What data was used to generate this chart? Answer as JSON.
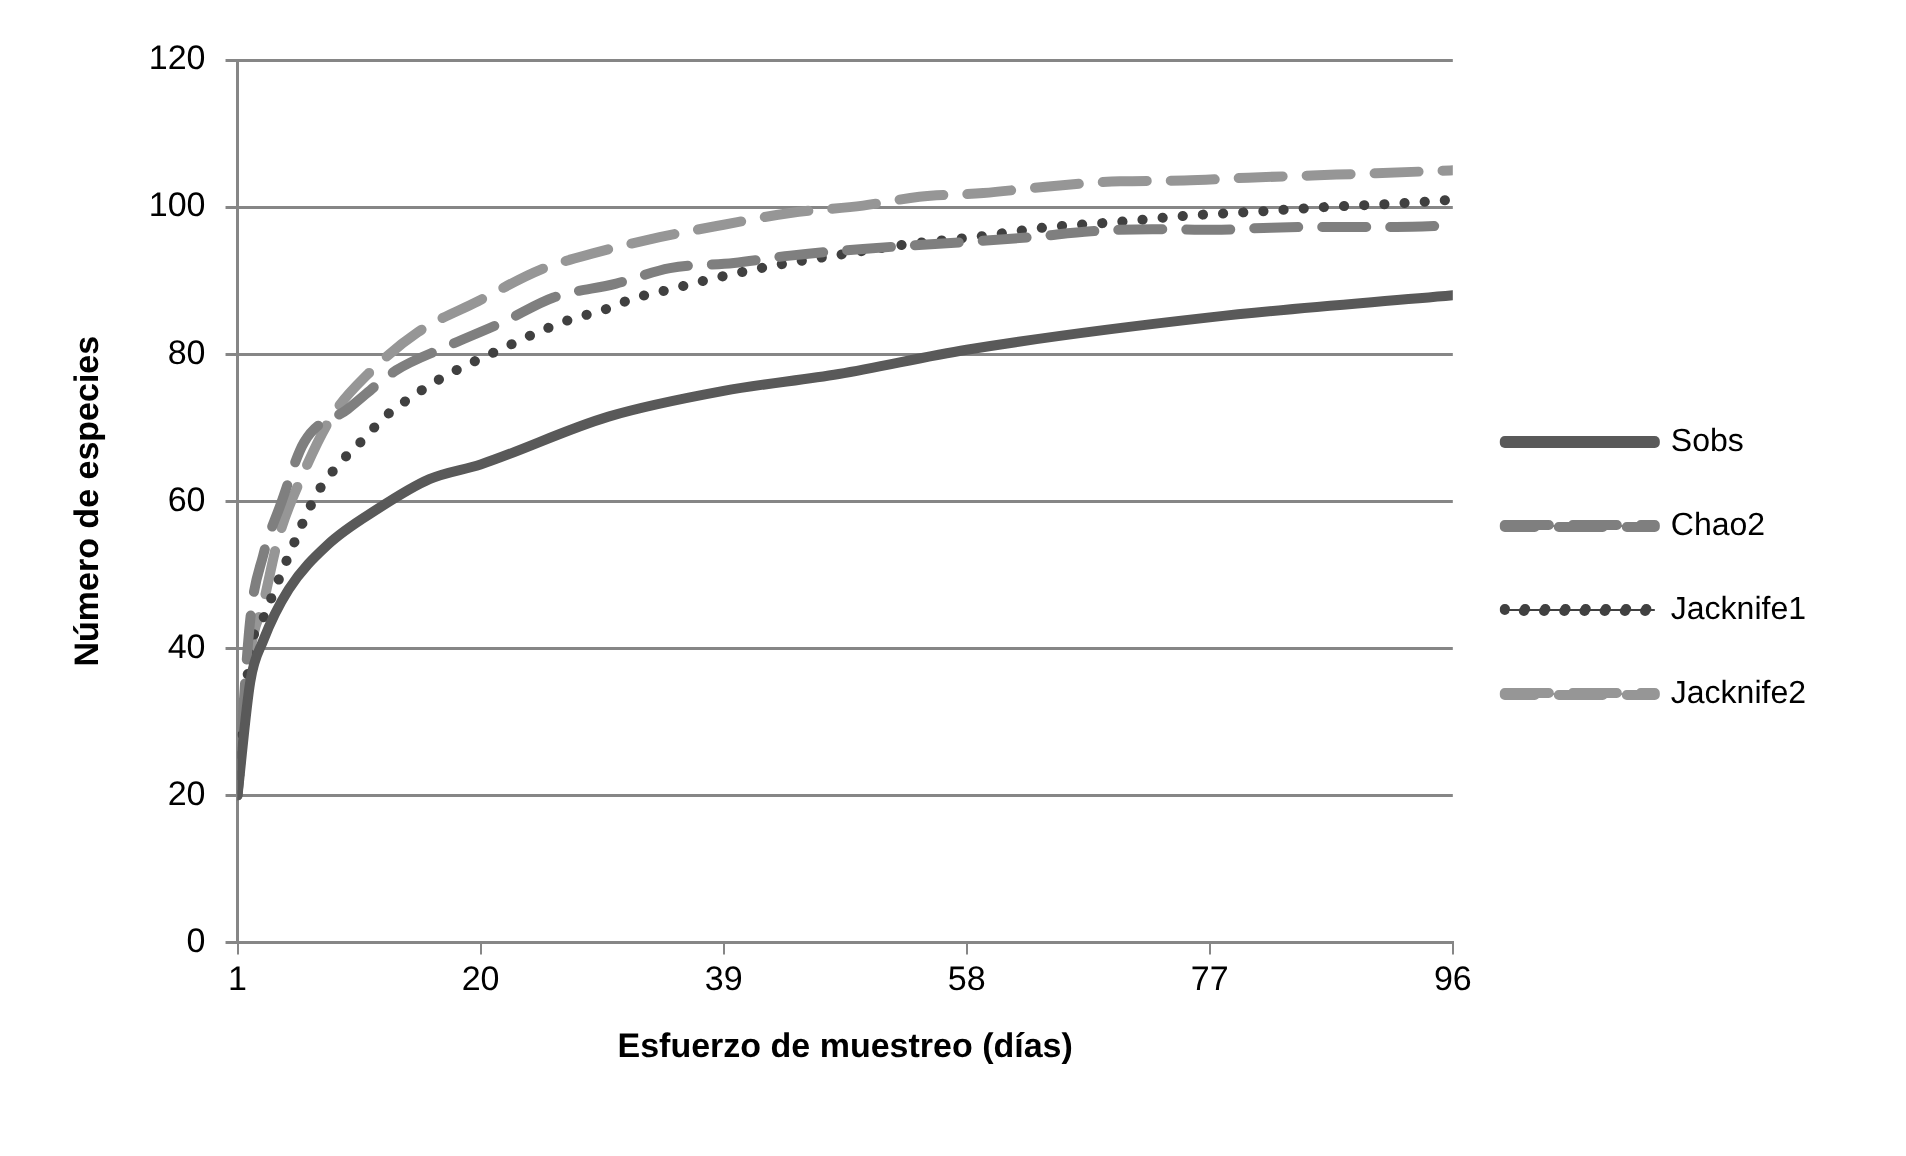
{
  "chart_data": {
    "type": "line",
    "xlabel": "Esfuerzo de muestreo (días)",
    "ylabel": "Número de especies",
    "xlim": [
      1,
      96
    ],
    "xticks": [
      1,
      20,
      39,
      58,
      77,
      96
    ],
    "ylim": [
      0,
      120
    ],
    "yticks": [
      0,
      20,
      40,
      60,
      80,
      100,
      120
    ],
    "grid": "y",
    "legend": "right",
    "marker": "none",
    "series": [
      {
        "name": "Sobs",
        "color": "#595959",
        "line_style": "solid",
        "x": [
          1,
          2,
          3,
          5,
          8,
          12,
          16,
          20,
          30,
          39,
          48,
          58,
          77,
          96
        ],
        "values": [
          20,
          35.5,
          41,
          48,
          54,
          59,
          63,
          65,
          71.5,
          75,
          77.3,
          80.6,
          85,
          88
        ]
      },
      {
        "name": "Chao2",
        "color": "#7f7f7f",
        "line_style": "dashed",
        "x": [
          1,
          2,
          3,
          4.4,
          6.2,
          9.6,
          13.4,
          17.3,
          21.8,
          25.7,
          30.6,
          34.8,
          39.8,
          44.2,
          49.9,
          63,
          67.7,
          72.5,
          77.3,
          81.8,
          86,
          91.6,
          96
        ],
        "values": [
          20,
          44,
          52.6,
          59.7,
          68,
          72.5,
          77.8,
          81,
          84.4,
          87.7,
          89.6,
          91.7,
          92.4,
          93.4,
          94.3,
          95.9,
          96.7,
          97,
          96.9,
          97.2,
          97.3,
          97.3,
          97.5
        ]
      },
      {
        "name": "Jacknife1",
        "color": "#404040",
        "line_style": "dotted",
        "x": [
          1,
          2,
          3,
          5,
          7.2,
          8.9,
          10.6,
          12.6,
          14.8,
          17,
          19.5,
          22,
          24.5,
          27,
          29.6,
          32,
          34.8,
          37.5,
          40,
          42.8,
          48,
          53.6,
          59,
          64,
          70,
          75,
          80.8,
          86,
          91.8,
          96
        ],
        "values": [
          20,
          39.5,
          44,
          52.6,
          61,
          65,
          68,
          71.6,
          74.4,
          76.8,
          79,
          81,
          83,
          84.7,
          86,
          87.6,
          88.8,
          90,
          91,
          92,
          93.5,
          95,
          96,
          97.2,
          98,
          98.8,
          99.4,
          100,
          100.5,
          101
        ]
      },
      {
        "name": "Jacknife2",
        "color": "#969696",
        "line_style": "dashed",
        "x": [
          1,
          2,
          3,
          4.2,
          6.2,
          8.4,
          11.2,
          15.1,
          19.8,
          24.7,
          29,
          34,
          39,
          44.2,
          49.9,
          54.3,
          59.3,
          64.4,
          70,
          75,
          80,
          85,
          90,
          96
        ],
        "values": [
          20,
          39.5,
          46,
          55,
          64,
          71.6,
          77.3,
          83,
          87.2,
          91.5,
          93.8,
          95.9,
          97.6,
          99.2,
          100.2,
          101.4,
          101.9,
          102.8,
          103.5,
          103.6,
          104,
          104.3,
          104.6,
          105
        ]
      }
    ]
  }
}
